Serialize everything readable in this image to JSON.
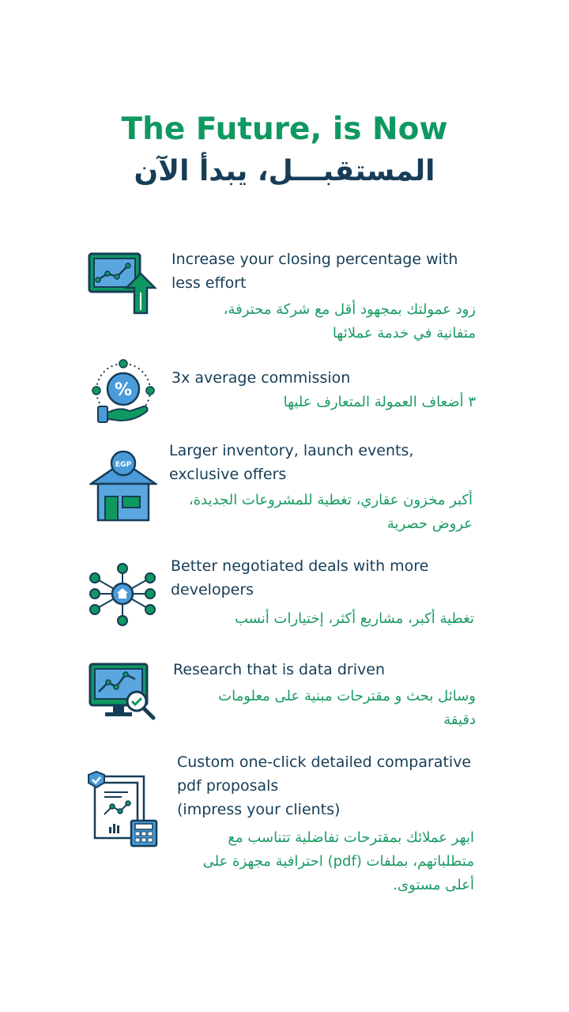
{
  "header": {
    "title_en": "The Future, is Now",
    "title_ar": "المستقبـــل، يبدأ الآن"
  },
  "features": [
    {
      "icon": "chart-growth-icon",
      "en": "Increase your closing percentage with less effort",
      "ar": "زود عمولتك بمجهود أقل مع شركة محترفة، متفانية في خدمة عملائها"
    },
    {
      "icon": "percent-hand-icon",
      "en": "3x average commission",
      "ar": "٣ أضعاف العمولة المتعارف عليها"
    },
    {
      "icon": "house-egp-icon",
      "en": "Larger inventory, launch events, exclusive offers",
      "ar": "أكبر مخزون عقاري، تغطية للمشروعات الجديدة، عروض حصرية"
    },
    {
      "icon": "network-house-icon",
      "en": "Better negotiated deals with more developers",
      "ar": "تغطية أكبر، مشاريع أكثر، إختيارات أنسب"
    },
    {
      "icon": "monitor-research-icon",
      "en": "Research that is data driven",
      "ar": "وسائل بحث و مقترحات مبنية على معلومات دقيقة"
    },
    {
      "icon": "pdf-report-icon",
      "en": "Custom one-click detailed comparative pdf proposals\n(impress your clients)",
      "ar": "ابهر عملائك بمقترحات تفاضلية تتناسب مع متطلباتهم، بملفات (pdf) احترافية مجهزة على أعلى مستوى."
    }
  ],
  "colors": {
    "green": "#0f9960",
    "navy": "#163d57",
    "blue": "#4a9bd9",
    "light_blue": "#5aa7e0"
  }
}
